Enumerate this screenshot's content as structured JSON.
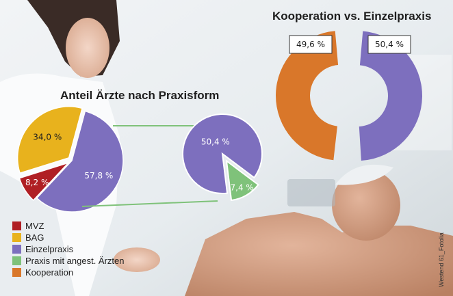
{
  "colors": {
    "mvz": "#b01f24",
    "bag": "#e8b21d",
    "einzelpraxis": "#7d6fbe",
    "praxis_angest": "#7fc27a",
    "kooperation": "#d9772a",
    "connector": "#7fc27a"
  },
  "legend": [
    {
      "label": "MVZ",
      "color": "#b01f24"
    },
    {
      "label": "BAG",
      "color": "#e8b21d"
    },
    {
      "label": "Einzelpraxis",
      "color": "#7d6fbe"
    },
    {
      "label": "Praxis mit angest. Ärzten",
      "color": "#7fc27a"
    },
    {
      "label": "Kooperation",
      "color": "#d9772a"
    }
  ],
  "credit": "Westend 61_Fotolia",
  "chart_data": [
    {
      "type": "pie",
      "title": "Anteil Ärzte nach Praxisform",
      "slices": [
        {
          "name": "Einzelpraxis",
          "value": 57.8,
          "label": "57,8 %"
        },
        {
          "name": "MVZ",
          "value": 8.2,
          "label": "8,2 %"
        },
        {
          "name": "BAG",
          "value": 34.0,
          "label": "34,0 %"
        }
      ]
    },
    {
      "type": "pie",
      "title": "",
      "slices": [
        {
          "name": "Einzelpraxis",
          "value": 50.4,
          "label": "50,4 %"
        },
        {
          "name": "Praxis mit angest. Ärzten",
          "value": 7.4,
          "label": "7,4 %"
        }
      ]
    },
    {
      "type": "pie",
      "title": "Kooperation vs. Einzelpraxis",
      "slices": [
        {
          "name": "Einzelpraxis",
          "value": 50.4,
          "label": "50,4 %"
        },
        {
          "name": "Kooperation",
          "value": 49.6,
          "label": "49,6 %"
        }
      ]
    }
  ]
}
